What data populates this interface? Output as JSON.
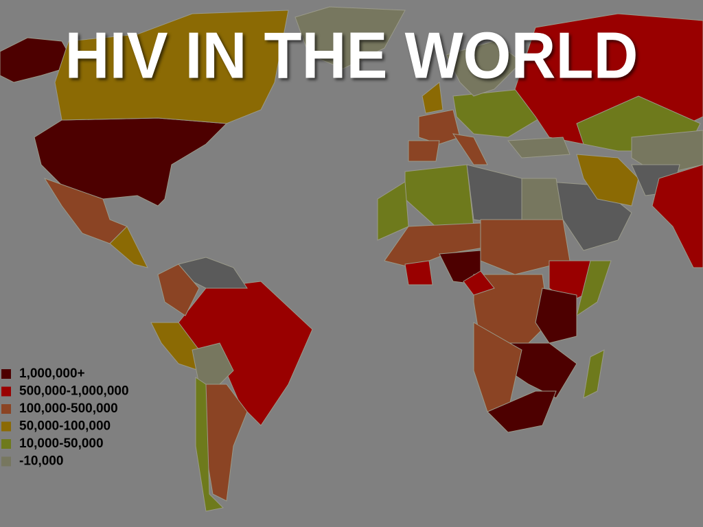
{
  "title": "HIV IN THE WORLD",
  "legend": [
    {
      "label": "1,000,000+",
      "color": "#4d0000"
    },
    {
      "label": "500,000-1,000,000",
      "color": "#990000"
    },
    {
      "label": "100,000-500,000",
      "color": "#8b4424"
    },
    {
      "label": "50,000-100,000",
      "color": "#8b6a04"
    },
    {
      "label": "10,000-50,000",
      "color": "#6e7a1c"
    },
    {
      "label": "-10,000",
      "color": "#77775f"
    }
  ]
}
